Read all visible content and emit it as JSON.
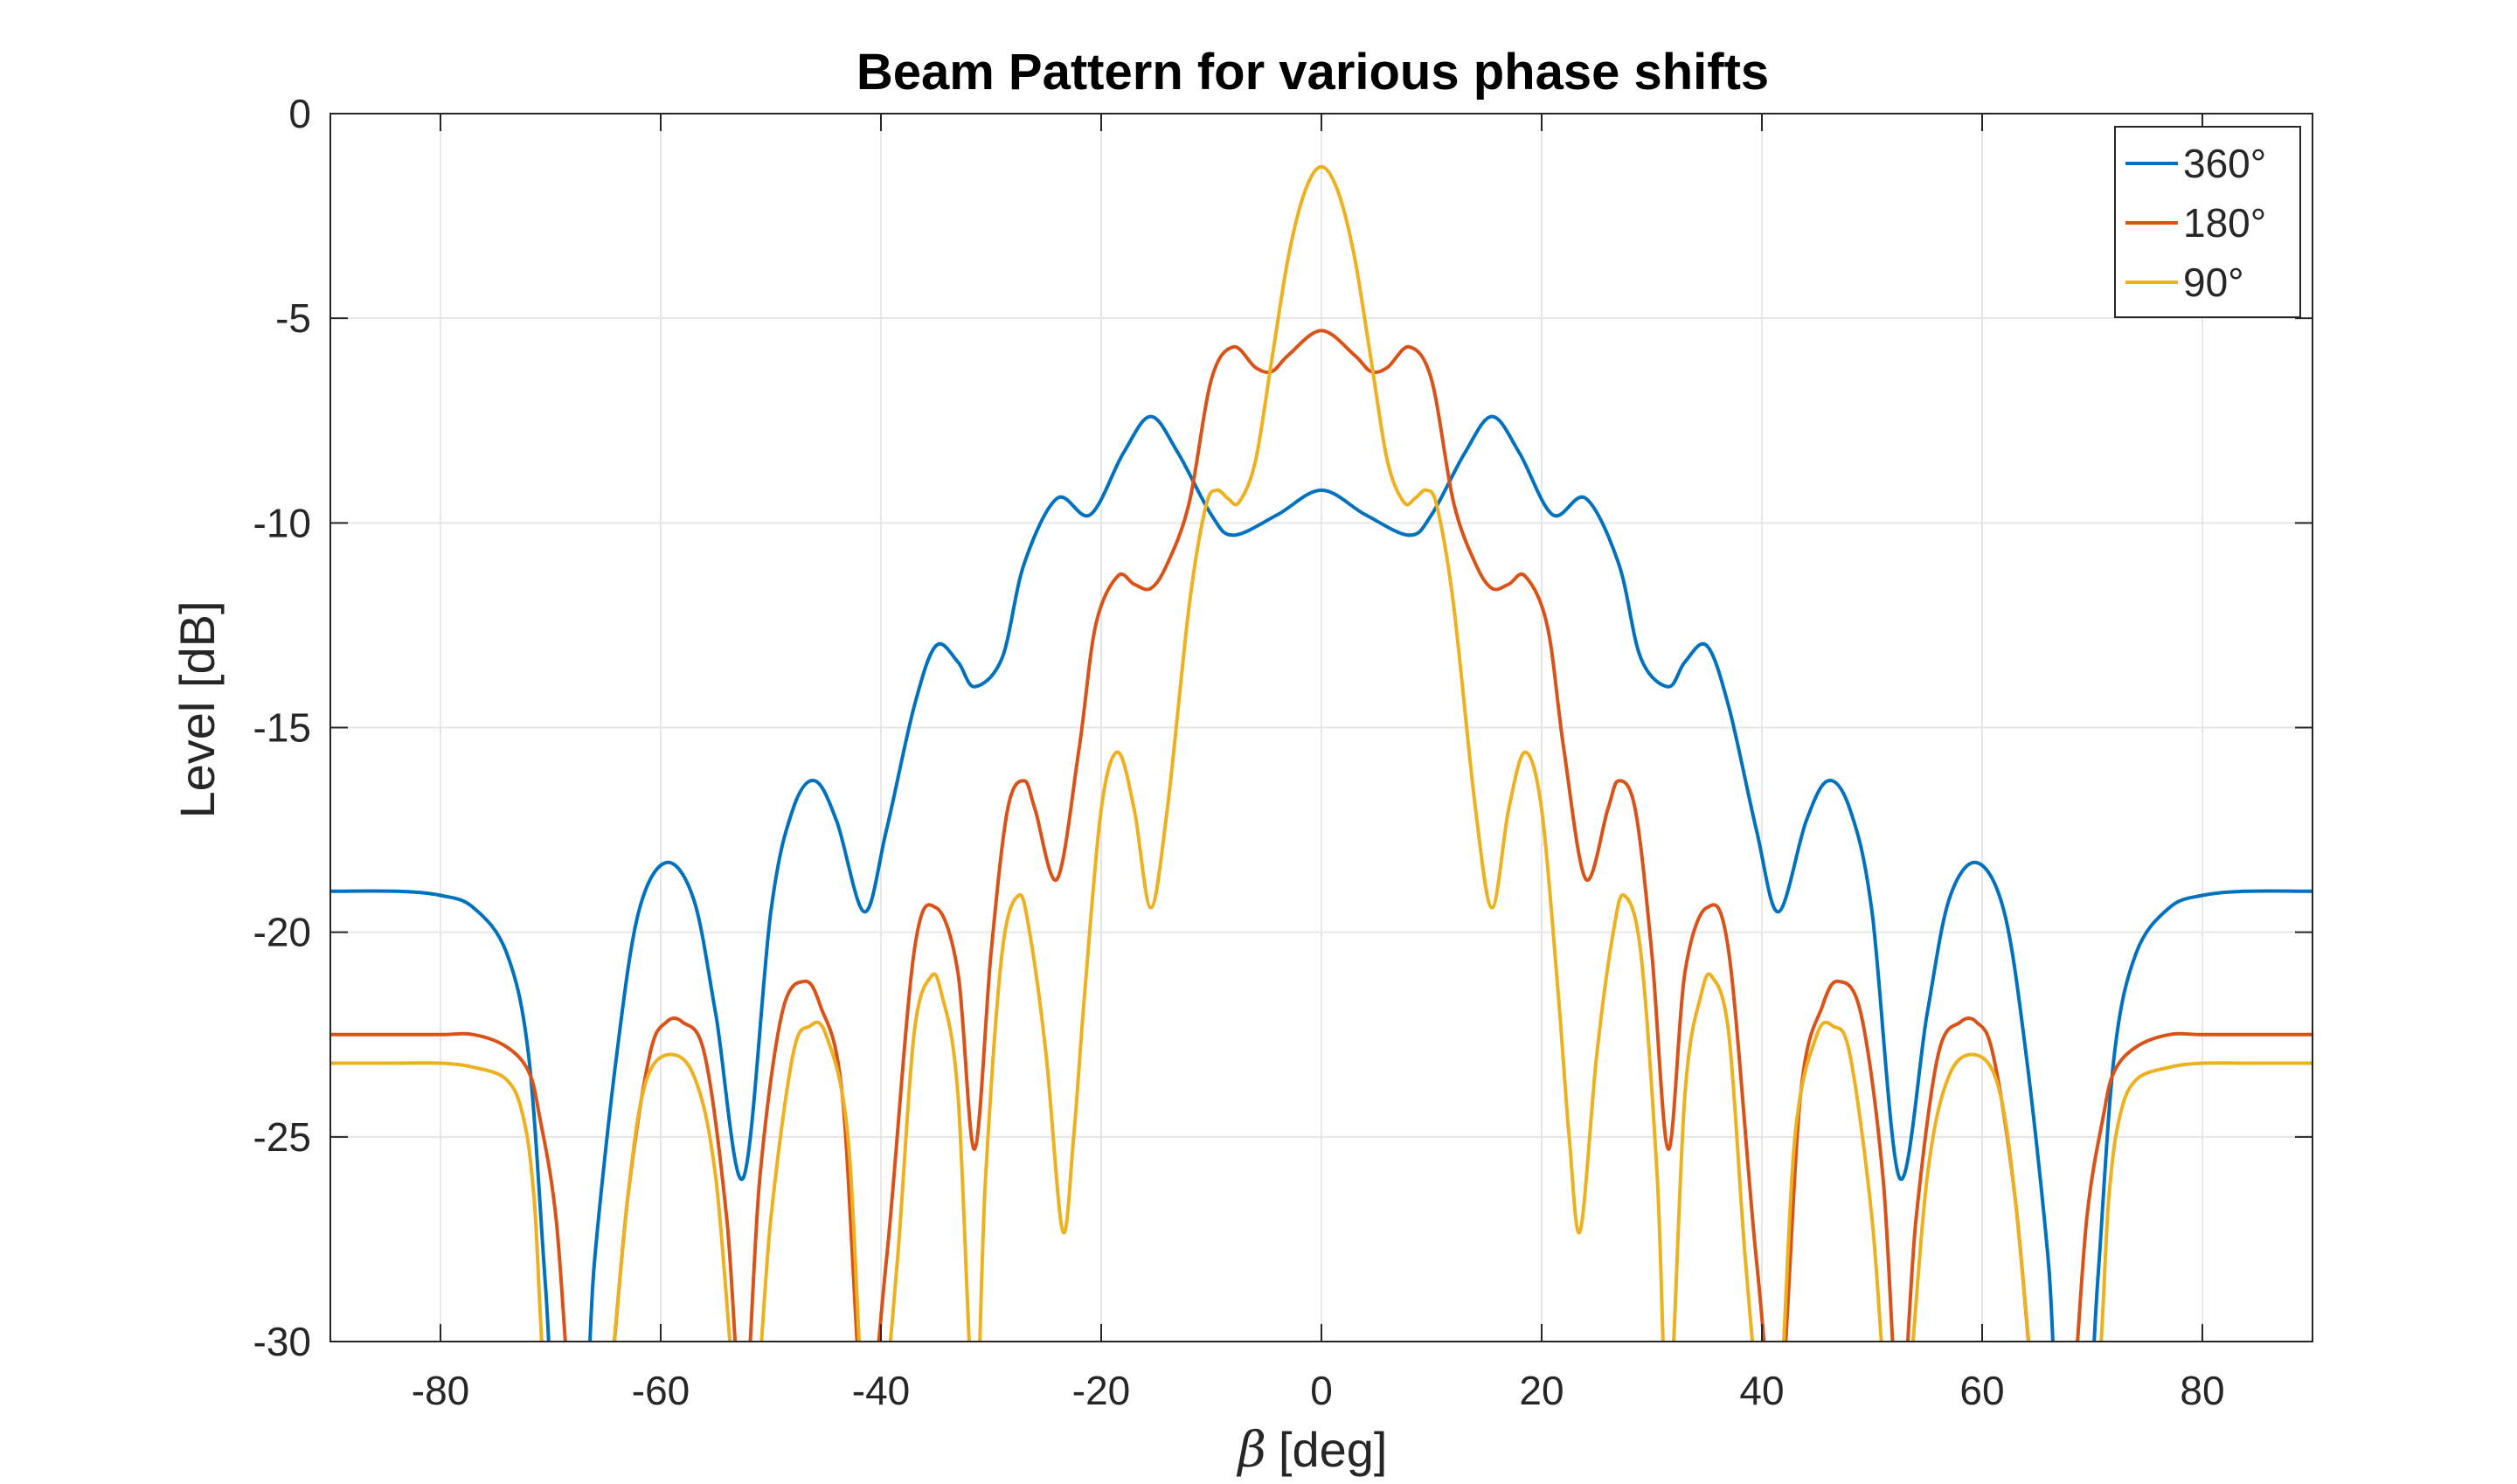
{
  "chart_data": {
    "type": "line",
    "title": "Beam Pattern for various phase shifts",
    "xlabel": {
      "symbol": "β",
      "text": "[deg]"
    },
    "ylabel": "Level [dB]",
    "xlim": [
      -90,
      90
    ],
    "ylim": [
      -30,
      0
    ],
    "xticks": [
      -80,
      -60,
      -40,
      -20,
      0,
      20,
      40,
      60,
      80
    ],
    "yticks": [
      0,
      -5,
      -10,
      -15,
      -20,
      -25,
      -30
    ],
    "grid": true,
    "legend_position": "top-right",
    "series": [
      {
        "name": "360°",
        "color": "#0072BD",
        "x": [
          0,
          4,
          8,
          10,
          13,
          15.5,
          18,
          21,
          24,
          27,
          29,
          31.5,
          33,
          35,
          37,
          39.5,
          41.5,
          44,
          46,
          48,
          50,
          52.5,
          55,
          57,
          59.5,
          62,
          64,
          66,
          67,
          69.5,
          70.5,
          72,
          74,
          77,
          80,
          84,
          90
        ],
        "values": [
          -9.2,
          -9.8,
          -10.3,
          -9.8,
          -8.3,
          -7.4,
          -8.3,
          -9.8,
          -9.4,
          -11.0,
          -13.3,
          -14.0,
          -13.4,
          -13.0,
          -14.5,
          -17.5,
          -19.5,
          -17.3,
          -16.3,
          -17.0,
          -19.5,
          -26.0,
          -22.0,
          -19.2,
          -18.3,
          -19.5,
          -23.0,
          -28.0,
          -32,
          -32,
          -28.5,
          -23.0,
          -20.5,
          -19.4,
          -19.1,
          -19.0,
          -19.0
        ]
      },
      {
        "name": "180°",
        "color": "#D95319",
        "x": [
          0,
          3,
          4.5,
          6,
          8,
          10,
          12,
          14,
          15.5,
          17,
          18.5,
          20.5,
          22,
          24,
          26,
          27,
          28.5,
          30,
          31.5,
          33,
          35,
          37,
          39.5,
          41.5,
          43.5,
          45.5,
          47,
          49,
          51,
          52.5,
          54,
          56,
          58,
          59.5,
          61,
          63,
          65,
          66.5,
          68,
          69.5,
          71,
          72,
          74,
          77,
          80,
          85,
          90
        ],
        "values": [
          -5.3,
          -5.9,
          -6.3,
          -6.2,
          -5.7,
          -6.5,
          -9.5,
          -11.0,
          -11.6,
          -11.5,
          -11.3,
          -12.5,
          -15.5,
          -18.7,
          -17.0,
          -16.3,
          -17.0,
          -20.5,
          -25.3,
          -21.0,
          -19.4,
          -20.5,
          -28.0,
          -32,
          -24.0,
          -21.8,
          -21.2,
          -22.0,
          -26.0,
          -32,
          -27.0,
          -23.0,
          -22.2,
          -22.2,
          -23.0,
          -26.5,
          -32,
          -32,
          -32,
          -27.0,
          -24.5,
          -23.4,
          -22.8,
          -22.5,
          -22.5,
          -22.5,
          -22.5
        ]
      },
      {
        "name": "90°",
        "color": "#EDB120",
        "x": [
          0,
          1.5,
          3,
          4.5,
          6,
          7.5,
          8.5,
          9.5,
          10.5,
          12,
          14,
          15.5,
          17,
          18.5,
          20,
          21.5,
          22.5,
          23.5,
          25,
          26.5,
          27.5,
          29,
          30.5,
          31.5,
          33,
          34.5,
          35.5,
          37,
          38.5,
          40,
          41.5,
          43,
          45,
          46.5,
          48,
          50,
          51.5,
          53,
          55,
          57,
          59.5,
          61.5,
          63,
          65,
          66,
          70,
          71.5,
          72.5,
          74,
          77,
          80,
          85,
          90
        ],
        "values": [
          -1.3,
          -1.9,
          -3.5,
          -6.0,
          -8.5,
          -9.5,
          -9.4,
          -9.2,
          -9.6,
          -12.0,
          -17.0,
          -19.4,
          -17.0,
          -15.6,
          -17.0,
          -21.5,
          -25.0,
          -27.3,
          -23.0,
          -20.0,
          -19.1,
          -20.5,
          -26.0,
          -32,
          -24.0,
          -21.5,
          -21.1,
          -22.5,
          -28.0,
          -32,
          -32,
          -25.0,
          -22.5,
          -22.3,
          -23.0,
          -27.0,
          -32,
          -32,
          -26.0,
          -23.5,
          -23.0,
          -23.8,
          -26.5,
          -32,
          -32,
          -32,
          -26.5,
          -24.5,
          -23.6,
          -23.3,
          -23.2,
          -23.2,
          -23.2
        ]
      }
    ]
  }
}
